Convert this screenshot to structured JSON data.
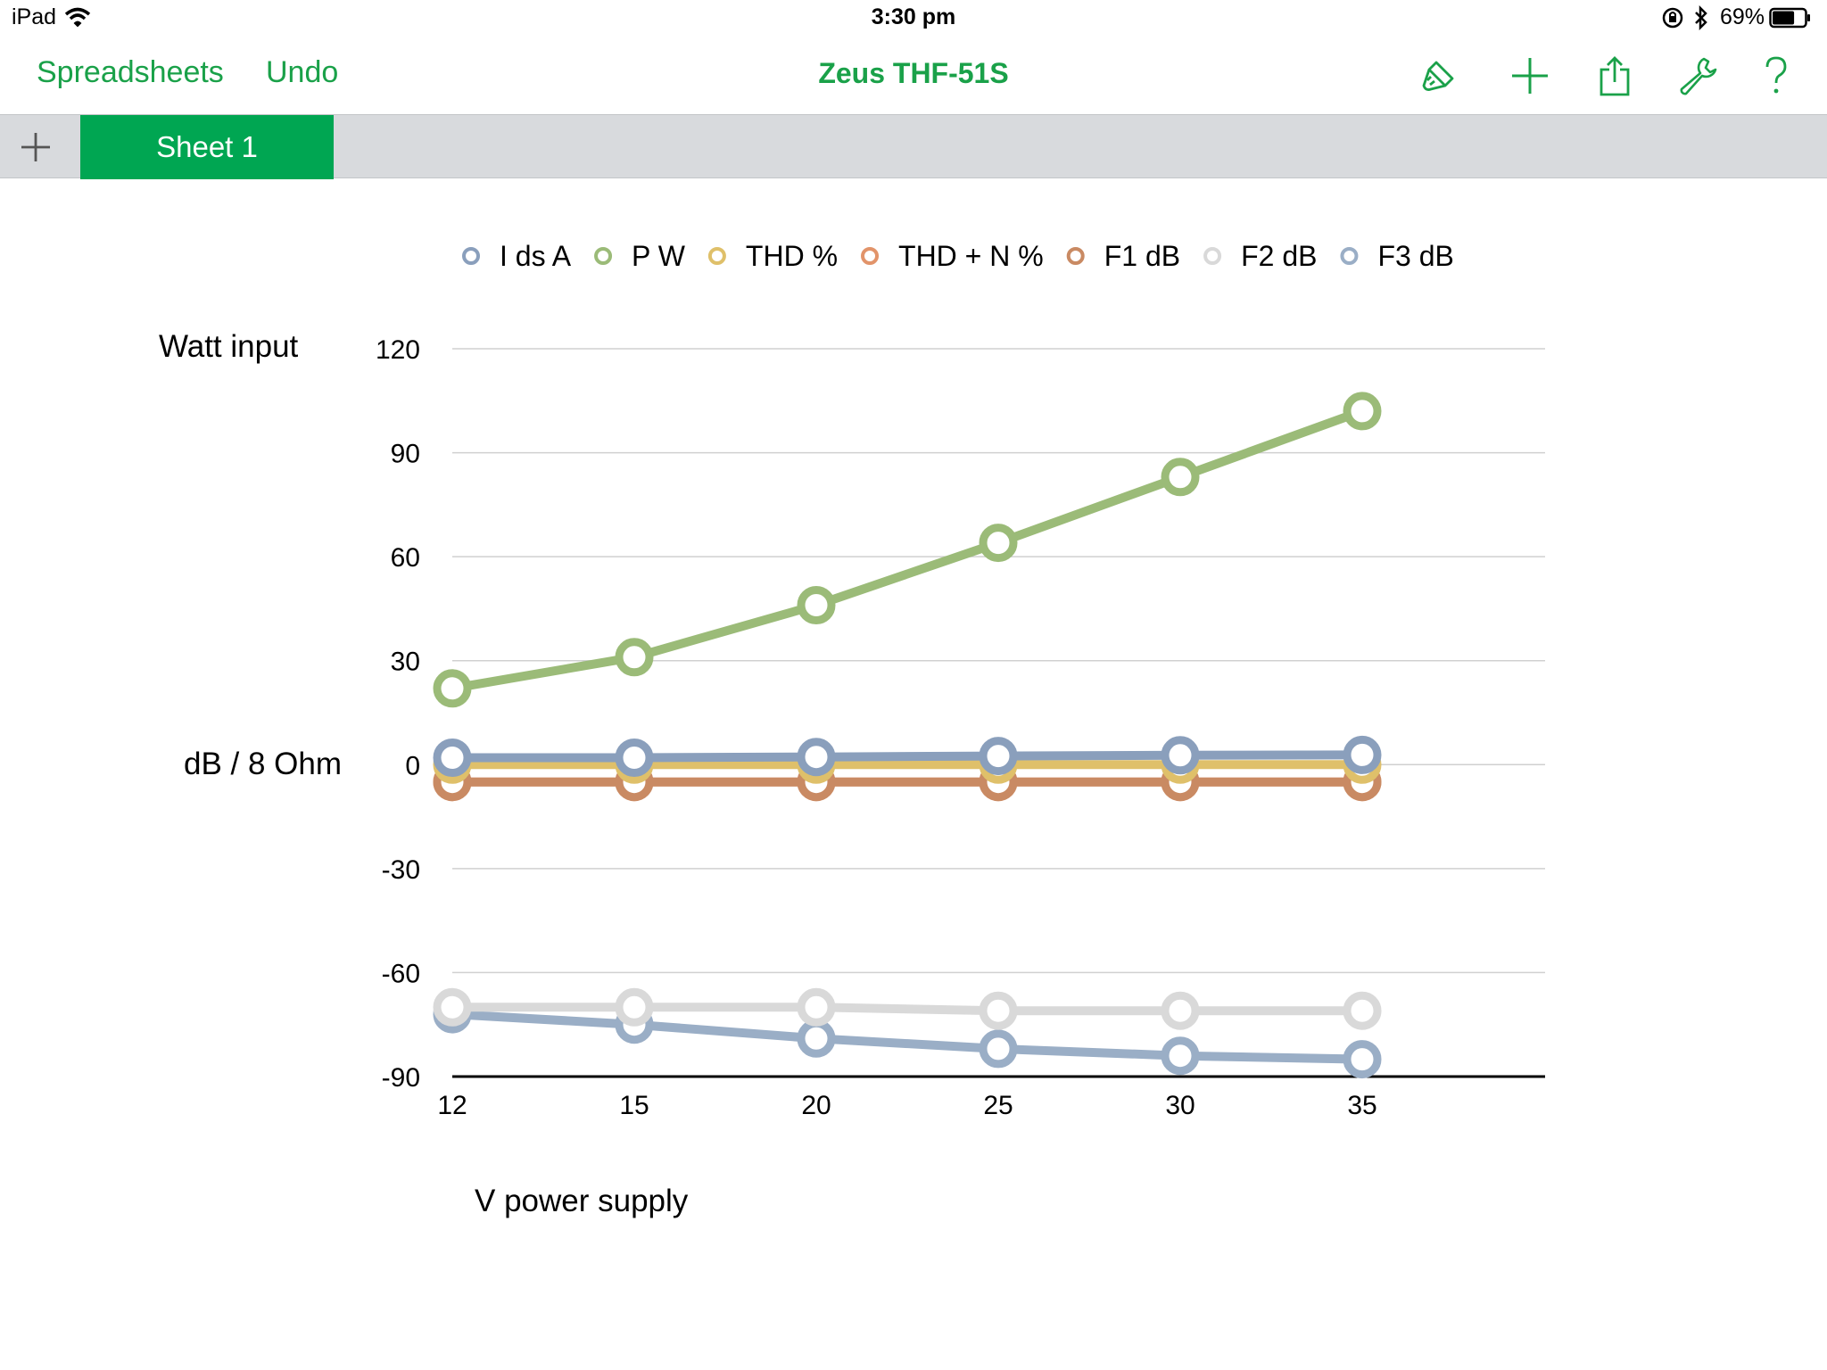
{
  "status_bar": {
    "device": "iPad",
    "time": "3:30 pm",
    "battery_percent": "69%",
    "battery_level": 0.69,
    "icons": [
      "wifi-icon",
      "lock-rotation-icon",
      "bluetooth-icon",
      "battery-icon"
    ]
  },
  "toolbar": {
    "back_label": "Spreadsheets",
    "undo_label": "Undo",
    "title": "Zeus THF-51S",
    "icons": [
      "paintbrush-icon",
      "add-icon",
      "share-icon",
      "wrench-icon",
      "help-icon"
    ],
    "accent_color": "#1aa149"
  },
  "tabs": {
    "add_icon": "add-sheet-icon",
    "active_tab": "Sheet 1",
    "active_color": "#00a652"
  },
  "chart_data": {
    "type": "line",
    "categories": [
      "12",
      "15",
      "20",
      "25",
      "30",
      "35"
    ],
    "xlabel": "V power supply",
    "ylabel_top": "Watt input",
    "ylabel_mid": "dB / 8 Ohm",
    "ylim": [
      -90,
      120
    ],
    "yticks": [
      120,
      90,
      60,
      30,
      0,
      -30,
      -60,
      -90
    ],
    "grid": true,
    "legend_position": "top",
    "series": [
      {
        "name": "I ds A",
        "color": "#8a9fbc",
        "values": [
          2,
          2,
          2.2,
          2.5,
          2.7,
          2.8
        ]
      },
      {
        "name": "P W",
        "color": "#9bbb78",
        "values": [
          22,
          31,
          46,
          64,
          83,
          102
        ]
      },
      {
        "name": "THD %",
        "color": "#dfc06a",
        "values": [
          0,
          0,
          0,
          0,
          0,
          0
        ]
      },
      {
        "name": "THD + N %",
        "color": "#e2946a",
        "values": [
          -5,
          -5,
          -5,
          -5,
          -5,
          -5
        ]
      },
      {
        "name": "F1 dB",
        "color": "#c98a63",
        "values": [
          -5,
          -5,
          -5,
          -5,
          -5,
          -5
        ]
      },
      {
        "name": "F2 dB",
        "color": "#d9d9d9",
        "values": [
          -70,
          -70,
          -70,
          -71,
          -71,
          -71
        ]
      },
      {
        "name": "F3 dB",
        "color": "#9aaec6",
        "values": [
          -72,
          -75,
          -79,
          -82,
          -84,
          -85
        ]
      }
    ]
  }
}
